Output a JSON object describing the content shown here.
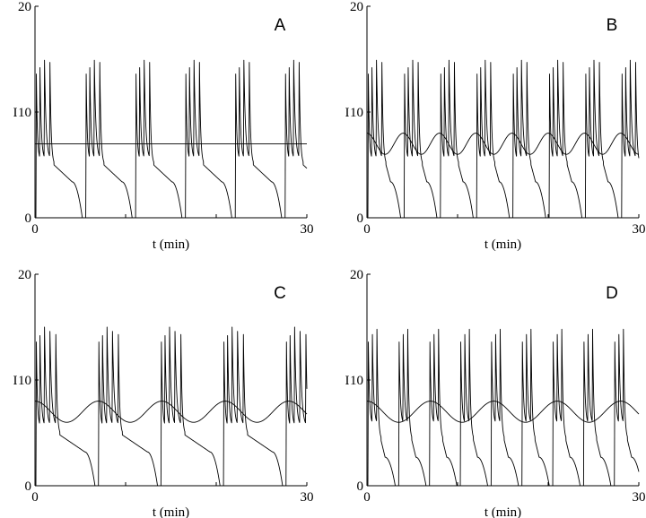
{
  "chart_data": [
    {
      "type": "line",
      "panel_label": "A",
      "xlabel": "t (min)",
      "ylabel": "I",
      "xlim": [
        0,
        30
      ],
      "ylim": [
        0,
        20
      ],
      "x_ticks": [
        "0",
        "30"
      ],
      "y_ticks": [
        "0",
        "10",
        "20"
      ],
      "grid": false,
      "series": [
        {
          "kind": "bursting-oscillation",
          "burst_period_min": 5.5,
          "spike_times_in_burst_min": [
            0.15,
            0.55,
            1.05,
            1.65
          ],
          "spike_peaks": [
            13.6,
            14.2,
            14.9,
            14.7
          ],
          "interspike_trough": 5.5,
          "post_burst_shoulder": 4.2,
          "quiescent_min": 0
        },
        {
          "kind": "constant",
          "value": 7
        }
      ]
    },
    {
      "type": "line",
      "panel_label": "B",
      "xlabel": "t (min)",
      "ylabel": "I",
      "xlim": [
        0,
        30
      ],
      "ylim": [
        0,
        20
      ],
      "x_ticks": [
        "0",
        "30"
      ],
      "y_ticks": [
        "0",
        "10",
        "20"
      ],
      "grid": false,
      "series": [
        {
          "kind": "bursting-oscillation",
          "burst_period_min": 4.0,
          "spike_times_in_burst_min": [
            0.15,
            0.55,
            1.05,
            1.65
          ],
          "spike_peaks": [
            13.6,
            14.2,
            14.9,
            14.7
          ],
          "interspike_trough": 5.5,
          "post_burst_shoulder": 4.2,
          "quiescent_min": 0
        },
        {
          "kind": "sinusoid",
          "mean": 7,
          "amplitude": 1,
          "period_min": 4.0,
          "value_at_t0": 8
        }
      ]
    },
    {
      "type": "line",
      "panel_label": "C",
      "xlabel": "t (min)",
      "ylabel": "I",
      "xlim": [
        0,
        30
      ],
      "ylim": [
        0,
        20
      ],
      "x_ticks": [
        "0",
        "30"
      ],
      "y_ticks": [
        "0",
        "10",
        "20"
      ],
      "grid": false,
      "series": [
        {
          "kind": "bursting-oscillation",
          "burst_period_min": 6.9,
          "spike_times_in_burst_min": [
            0.15,
            0.55,
            1.05,
            1.65,
            2.3
          ],
          "spike_peaks": [
            13.6,
            14.2,
            15.0,
            14.6,
            14.3
          ],
          "interspike_trough": 5.6,
          "post_burst_shoulder": 4.0,
          "quiescent_min": 0
        },
        {
          "kind": "sinusoid",
          "mean": 7,
          "amplitude": 1,
          "period_min": 7.0,
          "value_at_t0": 8
        }
      ]
    },
    {
      "type": "line",
      "panel_label": "D",
      "xlabel": "t (min)",
      "ylabel": "I",
      "xlim": [
        0,
        30
      ],
      "ylim": [
        0,
        20
      ],
      "x_ticks": [
        "0",
        "30"
      ],
      "y_ticks": [
        "0",
        "10",
        "20"
      ],
      "grid": false,
      "series": [
        {
          "kind": "bursting-oscillation",
          "burst_period_min": 3.4,
          "spike_times_in_burst_min": [
            0.15,
            0.6,
            1.1
          ],
          "spike_peaks": [
            13.6,
            14.3,
            14.8
          ],
          "interspike_trough": 5.8,
          "post_burst_shoulder": 3.5,
          "quiescent_min": 0
        },
        {
          "kind": "sinusoid",
          "mean": 7,
          "amplitude": 1,
          "period_min": 7.0,
          "value_at_t0": 8
        }
      ]
    }
  ]
}
